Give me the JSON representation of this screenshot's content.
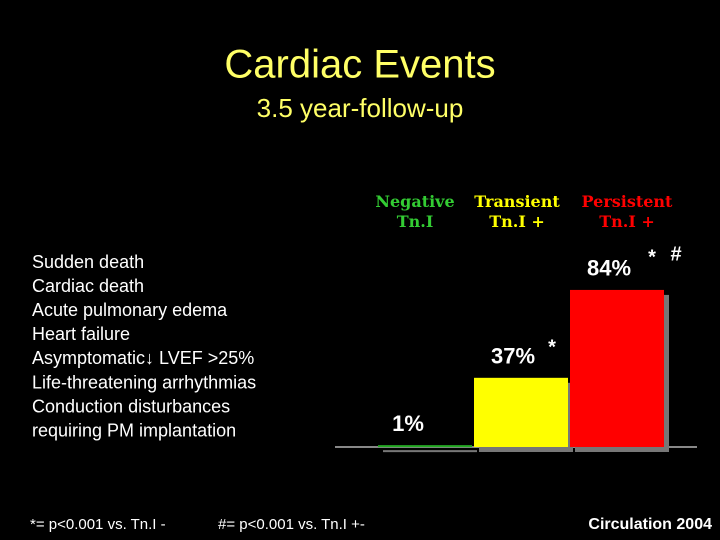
{
  "chart_data": {
    "type": "bar",
    "title": "Cardiac Events",
    "subtitle": "3.5 year-follow-up",
    "categories": [
      "Negative Tn.I",
      "Transient Tn.I +",
      "Persistent Tn.I +"
    ],
    "values": [
      1,
      37,
      84
    ],
    "value_labels": [
      "1%",
      "37%",
      "84%"
    ],
    "colors": [
      "#22aa22",
      "#ffff00",
      "#ff0000"
    ],
    "ylim": [
      0,
      100
    ],
    "annotations": [
      "*",
      "*",
      "#"
    ]
  },
  "events": [
    "Sudden death",
    "Cardiac death",
    "Acute pulmonary edema",
    "Heart failure",
    "Asymptomatic↓ LVEF >25%",
    "Life-threatening arrhythmias",
    "Conduction disturbances",
    "requiring PM implantation"
  ],
  "footnotes": [
    "*= p<0.001 vs. Tn.I -",
    "#= p<0.001 vs. Tn.I +-"
  ],
  "source": "Circulation 2004"
}
